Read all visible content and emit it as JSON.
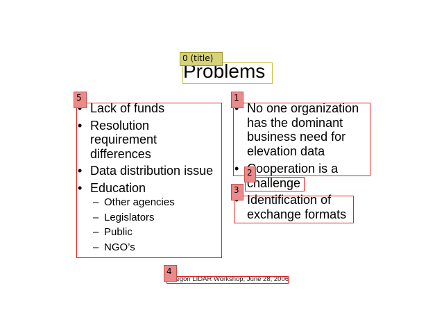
{
  "title": "Problems",
  "left_bullets": [
    "Lack of funds",
    "Resolution requirement differences",
    "Data distribution issue",
    "Education"
  ],
  "education_sub": [
    "Other agencies",
    "Legislators",
    "Public",
    "NGO’s"
  ],
  "right_bullets": [
    "No one organization has the dominant business need for elevation data",
    "Cooperation is a challenge",
    "Identification of exchange formats"
  ],
  "footer": "Oregon LIDAR Workshop, June 28, 2006",
  "glyphs": {
    "bullet": "•",
    "dash": "–"
  },
  "annotations": {
    "tag_0": "0 (title)",
    "tag_1": "1",
    "tag_2": "2",
    "tag_3": "3",
    "tag_4": "4",
    "tag_5": "5"
  },
  "colors": {
    "region_red": "#e02020",
    "region_yellow": "#c8c040",
    "tag_red": "#ea8a8a",
    "tag_yellow": "#d6d27a"
  }
}
